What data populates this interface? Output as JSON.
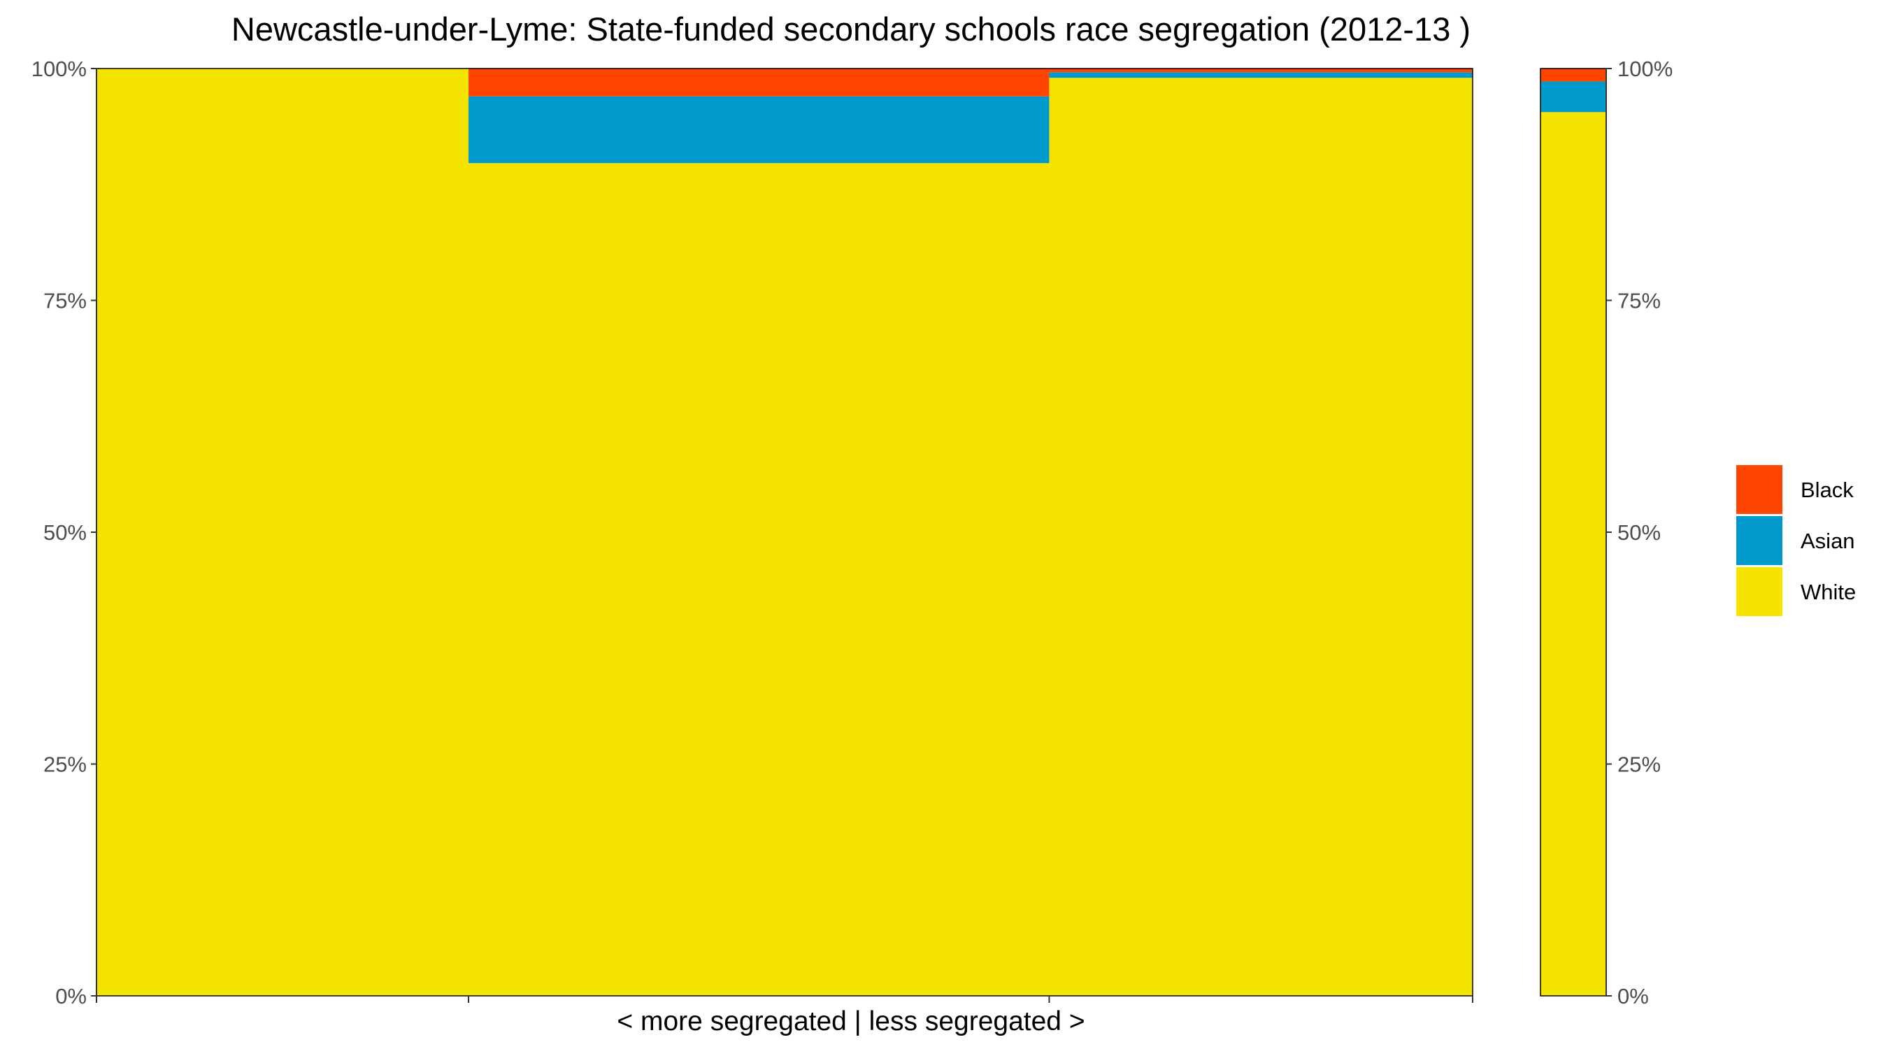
{
  "chart_data": {
    "type": "bar",
    "subtype": "stacked-variable-width",
    "title": "Newcastle-under-Lyme: State-funded secondary schools race segregation (2012-13 )",
    "xlabel": "< more segregated | less segregated >",
    "ylabel": "",
    "ylim": [
      0,
      1
    ],
    "y_ticks": [
      "0%",
      "25%",
      "50%",
      "75%",
      "100%"
    ],
    "secondary_y_axis": true,
    "legend_position": "right",
    "series": [
      {
        "name": "Black",
        "color": "#FF4500"
      },
      {
        "name": "Asian",
        "color": "#0099CC"
      },
      {
        "name": "White",
        "color": "#F5E400"
      }
    ],
    "bars": [
      {
        "width_share": 0.246,
        "values": {
          "White": 1.0,
          "Asian": 0.0,
          "Black": 0.0
        }
      },
      {
        "width_share": 0.384,
        "values": {
          "White": 0.898,
          "Asian": 0.072,
          "Black": 0.03
        }
      },
      {
        "width_share": 0.28,
        "values": {
          "White": 0.99,
          "Asian": 0.006,
          "Black": 0.004
        }
      }
    ],
    "overall_bar": {
      "values": {
        "White": 0.953,
        "Asian": 0.033,
        "Black": 0.014
      }
    }
  }
}
